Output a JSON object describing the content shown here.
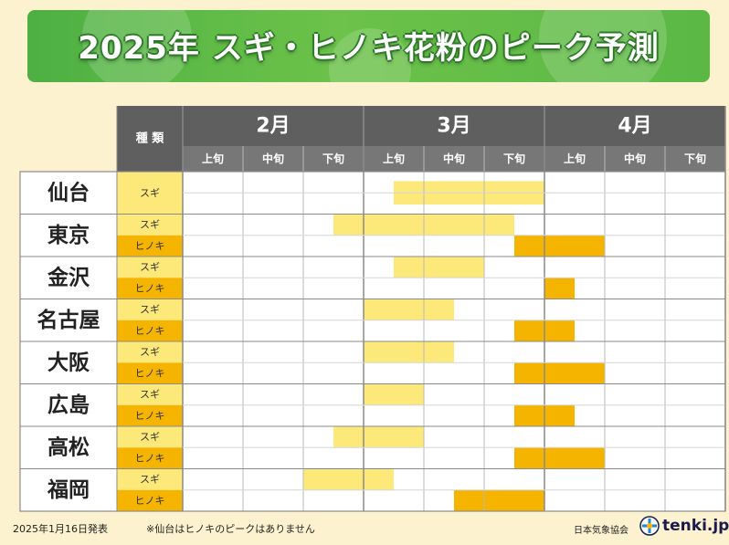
{
  "title": "2025年 スギ・ヒノキ花粉のピーク予測",
  "type_header": "種 類",
  "months": [
    "2月",
    "3月",
    "4月"
  ],
  "periods": [
    "上旬",
    "中旬",
    "下旬",
    "上旬",
    "中旬",
    "下旬",
    "上旬",
    "中旬",
    "下旬"
  ],
  "type_labels": {
    "sugi": "スギ",
    "hinoki": "ヒノキ"
  },
  "colors": {
    "sugi": "#fde97a",
    "hinoki": "#f5b400",
    "header_dark": "#5f5f5f",
    "header_mid": "#777777",
    "grid_line": "#b9b9b9"
  },
  "chart_data": {
    "type": "table",
    "x_axis": [
      "2月上旬",
      "2月中旬",
      "2月下旬",
      "3月上旬",
      "3月中旬",
      "3月下旬",
      "4月上旬",
      "4月中旬",
      "4月下旬"
    ],
    "rows": [
      {
        "city": "仙台",
        "sugi": [
          3.5,
          6.0
        ],
        "hinoki": null
      },
      {
        "city": "東京",
        "sugi": [
          2.5,
          5.5
        ],
        "hinoki": [
          5.5,
          7.0
        ]
      },
      {
        "city": "金沢",
        "sugi": [
          3.5,
          5.0
        ],
        "hinoki": [
          6.0,
          6.5
        ]
      },
      {
        "city": "名古屋",
        "sugi": [
          3.0,
          4.5
        ],
        "hinoki": [
          5.5,
          6.5
        ]
      },
      {
        "city": "大阪",
        "sugi": [
          3.0,
          4.5
        ],
        "hinoki": [
          5.5,
          7.0
        ]
      },
      {
        "city": "広島",
        "sugi": [
          3.0,
          4.0
        ],
        "hinoki": [
          5.5,
          6.5
        ]
      },
      {
        "city": "高松",
        "sugi": [
          2.5,
          4.0
        ],
        "hinoki": [
          5.5,
          7.0
        ]
      },
      {
        "city": "福岡",
        "sugi": [
          2.0,
          3.5
        ],
        "hinoki": [
          4.5,
          6.0
        ]
      }
    ]
  },
  "footer": {
    "date": "2025年1月16日発表",
    "note": "※仙台はヒノキのピークはありません",
    "org": "日本気象協会",
    "brand": "tenki.jp"
  }
}
